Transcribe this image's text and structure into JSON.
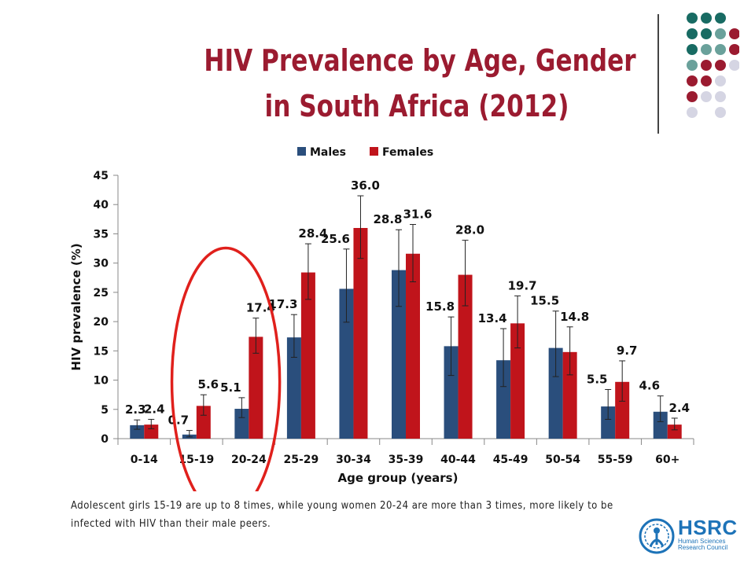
{
  "slide": {
    "title_line1": "HIV Prevalence by Age, Gender",
    "title_line2": "in South Africa (2012)",
    "caption": "Adolescent girls 15-19 are up to 8 times, while young women 20-24 are more than 3 times, more likely to be infected with HIV than their male peers.",
    "logo": {
      "brand": "HSRC",
      "subtitle": "Human Sciences Research Council",
      "color": "#1d73b8"
    },
    "highlight": {
      "target_categories": [
        "15-19",
        "20-24"
      ],
      "color": "#e0201c"
    },
    "decor_colors": [
      "#186b63",
      "#6aa19b",
      "#9b1b30",
      "#d5d5e3"
    ]
  },
  "chart_data": {
    "type": "bar",
    "categories": [
      "0-14",
      "15-19",
      "20-24",
      "25-29",
      "30-34",
      "35-39",
      "40-44",
      "45-49",
      "50-54",
      "55-59",
      "60+"
    ],
    "series": [
      {
        "name": "Males",
        "color": "#2a4e7c",
        "values": [
          2.3,
          0.7,
          5.1,
          17.3,
          25.6,
          28.8,
          15.8,
          13.4,
          15.5,
          5.5,
          4.6
        ],
        "labels": [
          "2.3",
          "0.7",
          "5.1",
          "17.3",
          "25.6",
          "28.8",
          "15.8",
          "13.4",
          "15.5",
          "5.5",
          "4.6"
        ],
        "error_low": [
          1.6,
          0.3,
          3.6,
          13.9,
          19.9,
          22.6,
          10.8,
          8.9,
          10.6,
          3.3,
          2.9
        ],
        "error_high": [
          3.2,
          1.4,
          7.0,
          21.2,
          32.4,
          35.7,
          20.8,
          18.8,
          21.8,
          8.4,
          7.3
        ]
      },
      {
        "name": "Females",
        "color": "#c0141b",
        "values": [
          2.4,
          5.6,
          17.4,
          28.4,
          36.0,
          31.6,
          28.0,
          19.7,
          14.8,
          9.7,
          2.4
        ],
        "labels": [
          "2.4",
          "5.6",
          "17.4",
          "28.4",
          "36.0",
          "31.6",
          "28.0",
          "19.7",
          "14.8",
          "9.7",
          "2.4"
        ],
        "error_low": [
          1.7,
          4.0,
          14.6,
          23.8,
          30.8,
          26.8,
          22.7,
          15.5,
          10.9,
          6.4,
          1.5
        ],
        "error_high": [
          3.3,
          7.5,
          20.6,
          33.3,
          41.5,
          36.6,
          33.9,
          24.4,
          19.1,
          13.3,
          3.5
        ]
      }
    ],
    "yticks": [
      "0",
      "5",
      "10",
      "15",
      "20",
      "25",
      "30",
      "35",
      "40",
      "45"
    ],
    "ylim": [
      0,
      45
    ],
    "xlabel": "Age group (years)",
    "ylabel": "HIV prevalence (%)",
    "legend_position": "top-center",
    "grid": false
  }
}
